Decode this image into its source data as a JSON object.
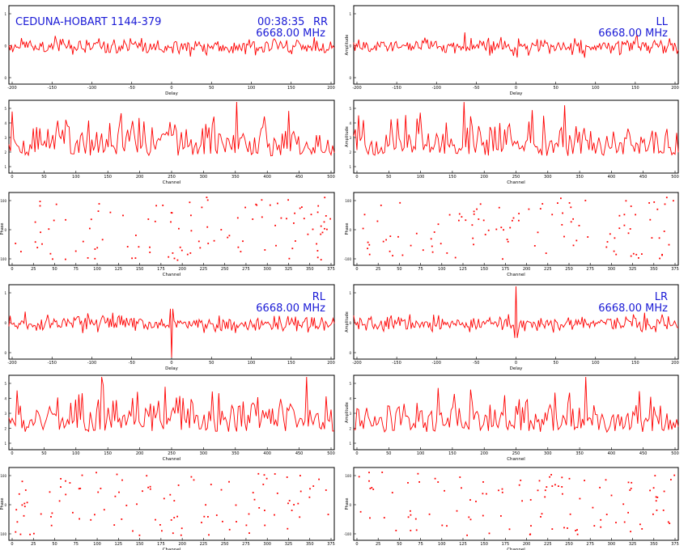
{
  "header": {
    "baseline": "CEDUNA-HOBART 1144-379",
    "time": "00:38:35",
    "freq": "6668.00 MHz"
  },
  "colors": {
    "trace": "#ff0000",
    "annotation": "#1a1ad6",
    "frame": "#000000"
  },
  "chart_data": [
    {
      "panel": "RR-delay",
      "type": "line",
      "pol": "RR",
      "xlabel": "Delay",
      "ylabel": "",
      "x_ticks": [
        "-200",
        "-150",
        "-100",
        "-50",
        "0",
        "50",
        "100",
        "150",
        "200"
      ],
      "y_ticks": [
        "0",
        "0",
        "1"
      ],
      "xlim": [
        -200,
        200
      ],
      "ylim": [
        -1,
        1
      ],
      "feature": "none"
    },
    {
      "panel": "LL-delay",
      "type": "line",
      "pol": "LL",
      "xlabel": "Delay",
      "ylabel": "Amplitude",
      "x_ticks": [
        "-200",
        "-150",
        "-100",
        "-50",
        "0",
        "50",
        "100",
        "150",
        "200"
      ],
      "y_ticks": [
        "0",
        "0",
        "1"
      ],
      "xlim": [
        -200,
        200
      ],
      "ylim": [
        -1,
        1
      ],
      "feature": "none"
    },
    {
      "panel": "RR-amp",
      "type": "line",
      "pol": "RR",
      "xlabel": "Channel",
      "ylabel": "",
      "x_ticks": [
        "0",
        "50",
        "100",
        "150",
        "200",
        "250",
        "300",
        "350",
        "400",
        "450",
        "500"
      ],
      "y_ticks": [
        "1",
        "2",
        "3",
        "4",
        "5"
      ],
      "xlim": [
        0,
        512
      ],
      "ylim": [
        0.5,
        5.5
      ],
      "feature": "none"
    },
    {
      "panel": "LL-amp",
      "type": "line",
      "pol": "LL",
      "xlabel": "Channel",
      "ylabel": "Amplitude",
      "x_ticks": [
        "0",
        "50",
        "100",
        "150",
        "200",
        "250",
        "300",
        "350",
        "400",
        "450",
        "500"
      ],
      "y_ticks": [
        "1",
        "2",
        "3",
        "4",
        "5"
      ],
      "xlim": [
        0,
        512
      ],
      "ylim": [
        0.5,
        5.5
      ],
      "feature": "none"
    },
    {
      "panel": "RR-phase",
      "type": "scatter",
      "pol": "RR",
      "xlabel": "Channel",
      "ylabel": "Phase",
      "x_ticks": [
        "0",
        "25",
        "50",
        "75",
        "100",
        "125",
        "150",
        "175",
        "200",
        "225",
        "250",
        "275",
        "300",
        "325",
        "350",
        "375"
      ],
      "y_ticks": [
        "-100",
        "0",
        "100"
      ],
      "xlim": [
        0,
        400
      ],
      "ylim": [
        -180,
        180
      ],
      "feature": "none"
    },
    {
      "panel": "LL-phase",
      "type": "scatter",
      "pol": "LL",
      "xlabel": "Channel",
      "ylabel": "Phase",
      "x_ticks": [
        "0",
        "25",
        "50",
        "75",
        "100",
        "125",
        "150",
        "175",
        "200",
        "225",
        "250",
        "275",
        "300",
        "325",
        "350",
        "375"
      ],
      "y_ticks": [
        "-100",
        "0",
        "100"
      ],
      "xlim": [
        0,
        400
      ],
      "ylim": [
        -180,
        180
      ],
      "feature": "none"
    },
    {
      "panel": "RL-delay",
      "type": "line",
      "pol": "RL",
      "xlabel": "Delay",
      "ylabel": "",
      "x_ticks": [
        "-200",
        "-150",
        "-100",
        "-50",
        "0",
        "50",
        "100",
        "150",
        "200"
      ],
      "y_ticks": [
        "0",
        "0",
        "1"
      ],
      "xlim": [
        -200,
        200
      ],
      "ylim": [
        -1,
        1
      ],
      "feature": "dip"
    },
    {
      "panel": "LR-delay",
      "type": "line",
      "pol": "LR",
      "xlabel": "Delay",
      "ylabel": "Amplitude",
      "x_ticks": [
        "-200",
        "-150",
        "-100",
        "-50",
        "0",
        "50",
        "100",
        "150",
        "200"
      ],
      "y_ticks": [
        "0",
        "0",
        "1"
      ],
      "xlim": [
        -200,
        200
      ],
      "ylim": [
        -1,
        1
      ],
      "feature": "spike"
    },
    {
      "panel": "RL-amp",
      "type": "line",
      "pol": "RL",
      "xlabel": "Channel",
      "ylabel": "",
      "x_ticks": [
        "0",
        "50",
        "100",
        "150",
        "200",
        "250",
        "300",
        "350",
        "400",
        "450",
        "500"
      ],
      "y_ticks": [
        "1",
        "2",
        "3",
        "4",
        "5"
      ],
      "xlim": [
        0,
        512
      ],
      "ylim": [
        0.5,
        5.5
      ],
      "feature": "none"
    },
    {
      "panel": "LR-amp",
      "type": "line",
      "pol": "LR",
      "xlabel": "Channel",
      "ylabel": "Amplitude",
      "x_ticks": [
        "0",
        "50",
        "100",
        "150",
        "200",
        "250",
        "300",
        "350",
        "400",
        "450",
        "500"
      ],
      "y_ticks": [
        "1",
        "2",
        "3",
        "4",
        "5"
      ],
      "xlim": [
        0,
        512
      ],
      "ylim": [
        0.5,
        5.5
      ],
      "feature": "none"
    },
    {
      "panel": "RL-phase",
      "type": "scatter",
      "pol": "RL",
      "xlabel": "Channel",
      "ylabel": "Phase",
      "x_ticks": [
        "0",
        "25",
        "50",
        "75",
        "100",
        "125",
        "150",
        "175",
        "200",
        "225",
        "250",
        "275",
        "300",
        "325",
        "350",
        "375"
      ],
      "y_ticks": [
        "-100",
        "0",
        "100"
      ],
      "xlim": [
        0,
        400
      ],
      "ylim": [
        -180,
        180
      ],
      "feature": "none"
    },
    {
      "panel": "LR-phase",
      "type": "scatter",
      "pol": "LR",
      "xlabel": "Channel",
      "ylabel": "Phase",
      "x_ticks": [
        "0",
        "25",
        "50",
        "75",
        "100",
        "125",
        "150",
        "175",
        "200",
        "225",
        "250",
        "275",
        "300",
        "325",
        "350",
        "375"
      ],
      "y_ticks": [
        "-100",
        "0",
        "100"
      ],
      "xlim": [
        0,
        400
      ],
      "ylim": [
        -180,
        180
      ],
      "feature": "none"
    }
  ]
}
